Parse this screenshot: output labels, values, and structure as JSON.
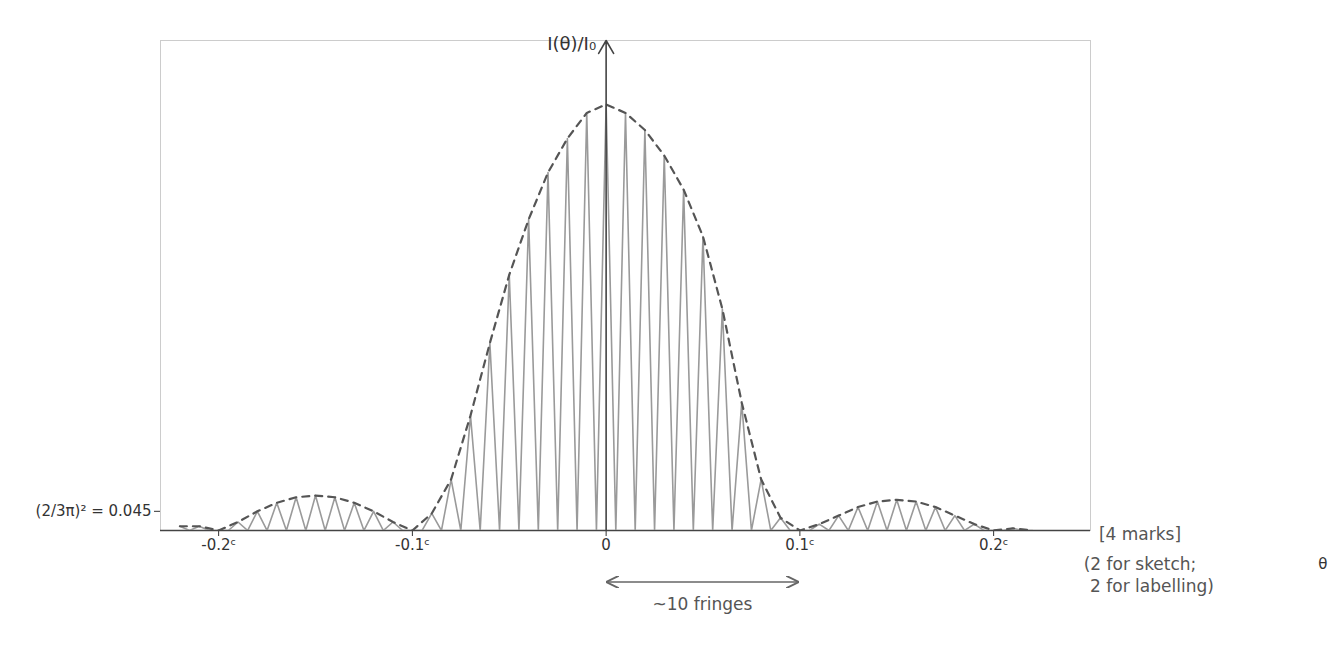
{
  "chart_data": {
    "type": "line",
    "x_label": "θ",
    "y_label": "I(θ)/I₀",
    "xlim": [
      -0.23,
      0.25
    ],
    "ylim": [
      0,
      1.15
    ],
    "xticks": [
      {
        "value": -0.2,
        "label": "-0.2ᶜ"
      },
      {
        "value": -0.1,
        "label": "-0.1ᶜ"
      },
      0,
      {
        "value": 0.1,
        "label": "0.1ᶜ"
      },
      {
        "value": 0.2,
        "label": "0.2ᶜ"
      }
    ],
    "yticks": [
      {
        "value": 0.045,
        "label": "(2/3π)² = 0.045"
      }
    ],
    "grid": false,
    "series": [
      {
        "color": "#9a9a9a",
        "line_style": "solid",
        "x": [
          -0.22,
          -0.215,
          -0.21,
          -0.205,
          -0.2,
          -0.195,
          -0.19,
          -0.185,
          -0.18,
          -0.175,
          -0.17,
          -0.165,
          -0.16,
          -0.155,
          -0.15,
          -0.145,
          -0.14,
          -0.135,
          -0.13,
          -0.125,
          -0.12,
          -0.115,
          -0.11,
          -0.105,
          -0.1,
          -0.095,
          -0.09,
          -0.085,
          -0.08,
          -0.075,
          -0.07,
          -0.065,
          -0.06,
          -0.055,
          -0.05,
          -0.045,
          -0.04,
          -0.035,
          -0.03,
          -0.025,
          -0.02,
          -0.015,
          -0.01,
          -0.005,
          0,
          0.005,
          0.01,
          0.015,
          0.02,
          0.025,
          0.03,
          0.035,
          0.04,
          0.045,
          0.05,
          0.055,
          0.06,
          0.065,
          0.07,
          0.075,
          0.08,
          0.085,
          0.09,
          0.095,
          0.1,
          0.105,
          0.11,
          0.115,
          0.12,
          0.125,
          0.13,
          0.135,
          0.14,
          0.145,
          0.15,
          0.155,
          0.16,
          0.165,
          0.17,
          0.175,
          0.18,
          0.185,
          0.19,
          0.195,
          0.2,
          0.205,
          0.21,
          0.215,
          0.22
        ],
        "values": [
          0.01,
          0,
          0.01,
          0,
          0,
          0,
          0.02,
          0,
          0.045,
          0,
          0.065,
          0,
          0.078,
          0,
          0.082,
          0,
          0.078,
          0,
          0.065,
          0,
          0.045,
          0,
          0.02,
          0,
          0,
          0,
          0.04,
          0,
          0.12,
          0,
          0.27,
          0,
          0.44,
          0,
          0.6,
          0,
          0.73,
          0,
          0.84,
          0,
          0.92,
          0,
          0.98,
          0,
          1,
          0,
          0.98,
          0,
          0.94,
          0,
          0.88,
          0,
          0.8,
          0,
          0.69,
          0,
          0.52,
          0,
          0.3,
          0,
          0.12,
          0,
          0.03,
          0,
          0,
          0,
          0.015,
          0,
          0.035,
          0,
          0.055,
          0,
          0.068,
          0,
          0.072,
          0,
          0.068,
          0,
          0.055,
          0,
          0.035,
          0,
          0.015,
          0,
          0,
          0,
          0.005,
          0,
          0
        ]
      },
      {
        "color": "#555555",
        "line_style": "dashed",
        "x": [
          -0.22,
          -0.21,
          -0.2,
          -0.19,
          -0.18,
          -0.17,
          -0.16,
          -0.15,
          -0.14,
          -0.13,
          -0.12,
          -0.11,
          -0.1,
          -0.09,
          -0.08,
          -0.07,
          -0.06,
          -0.05,
          -0.04,
          -0.03,
          -0.02,
          -0.01,
          0,
          0.01,
          0.02,
          0.03,
          0.04,
          0.05,
          0.06,
          0.07,
          0.08,
          0.09,
          0.1,
          0.11,
          0.12,
          0.13,
          0.14,
          0.15,
          0.16,
          0.17,
          0.18,
          0.19,
          0.2,
          0.21,
          0.22
        ],
        "values": [
          0.01,
          0.01,
          0,
          0.02,
          0.045,
          0.065,
          0.078,
          0.082,
          0.078,
          0.065,
          0.045,
          0.02,
          0,
          0.04,
          0.12,
          0.27,
          0.44,
          0.6,
          0.73,
          0.84,
          0.92,
          0.98,
          1,
          0.98,
          0.94,
          0.88,
          0.8,
          0.69,
          0.52,
          0.3,
          0.12,
          0.03,
          0,
          0.015,
          0.035,
          0.055,
          0.068,
          0.072,
          0.068,
          0.055,
          0.035,
          0.015,
          0,
          0.005,
          0
        ]
      }
    ],
    "annotations": [
      {
        "text": "~10 fringes",
        "x": [
          0,
          0.1
        ]
      },
      {
        "text": "[4 marks]"
      },
      {
        "text": "(2 for sketch; 2 for labelling)"
      }
    ]
  }
}
